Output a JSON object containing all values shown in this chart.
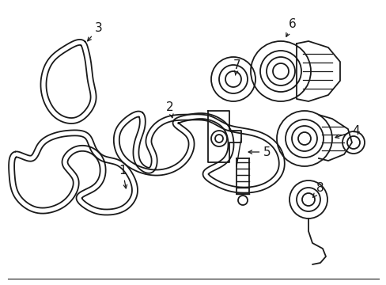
{
  "background_color": "#ffffff",
  "line_color": "#1a1a1a",
  "line_width": 1.3,
  "fig_width": 4.89,
  "fig_height": 3.6,
  "dpi": 100
}
